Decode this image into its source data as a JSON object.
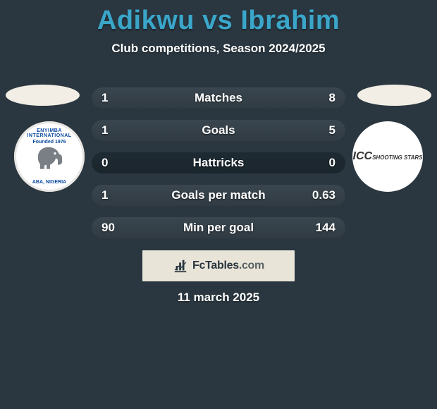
{
  "header": {
    "title": "Adikwu vs Ibrahim",
    "subtitle": "Club competitions, Season 2024/2025",
    "title_color": "#3aa6c9"
  },
  "crest_left": {
    "top_text": "ENYIMBA INTERNATIONAL",
    "year_text": "Founded 1976",
    "bottom_text": "ABA, NIGERIA",
    "bg_color": "#ffffff",
    "text_color": "#0a4aa0"
  },
  "crest_right": {
    "line1": "ICC",
    "line2": "SHOOTING STARS",
    "bg_color": "#ffffff",
    "text_color": "#333333"
  },
  "stats": {
    "rows": [
      {
        "label": "Matches",
        "left": "1",
        "right": "8",
        "lnum": 1,
        "rnum": 8
      },
      {
        "label": "Goals",
        "left": "1",
        "right": "5",
        "lnum": 1,
        "rnum": 5
      },
      {
        "label": "Hattricks",
        "left": "0",
        "right": "0",
        "lnum": 0,
        "rnum": 0
      },
      {
        "label": "Goals per match",
        "left": "1",
        "right": "0.63",
        "lnum": 1,
        "rnum": 0.63
      },
      {
        "label": "Min per goal",
        "left": "90",
        "right": "144",
        "lnum": 90,
        "rnum": 144
      }
    ],
    "track_color": "#1a252c",
    "fill_color": "#303b43",
    "label_fontsize": 17
  },
  "brand": {
    "name": "FcTables",
    "domain": ".com",
    "bg_color": "#e9e4d8"
  },
  "date": {
    "text": "11 march 2025"
  },
  "colors": {
    "page_bg": "#2a3740",
    "text": "#ffffff"
  }
}
